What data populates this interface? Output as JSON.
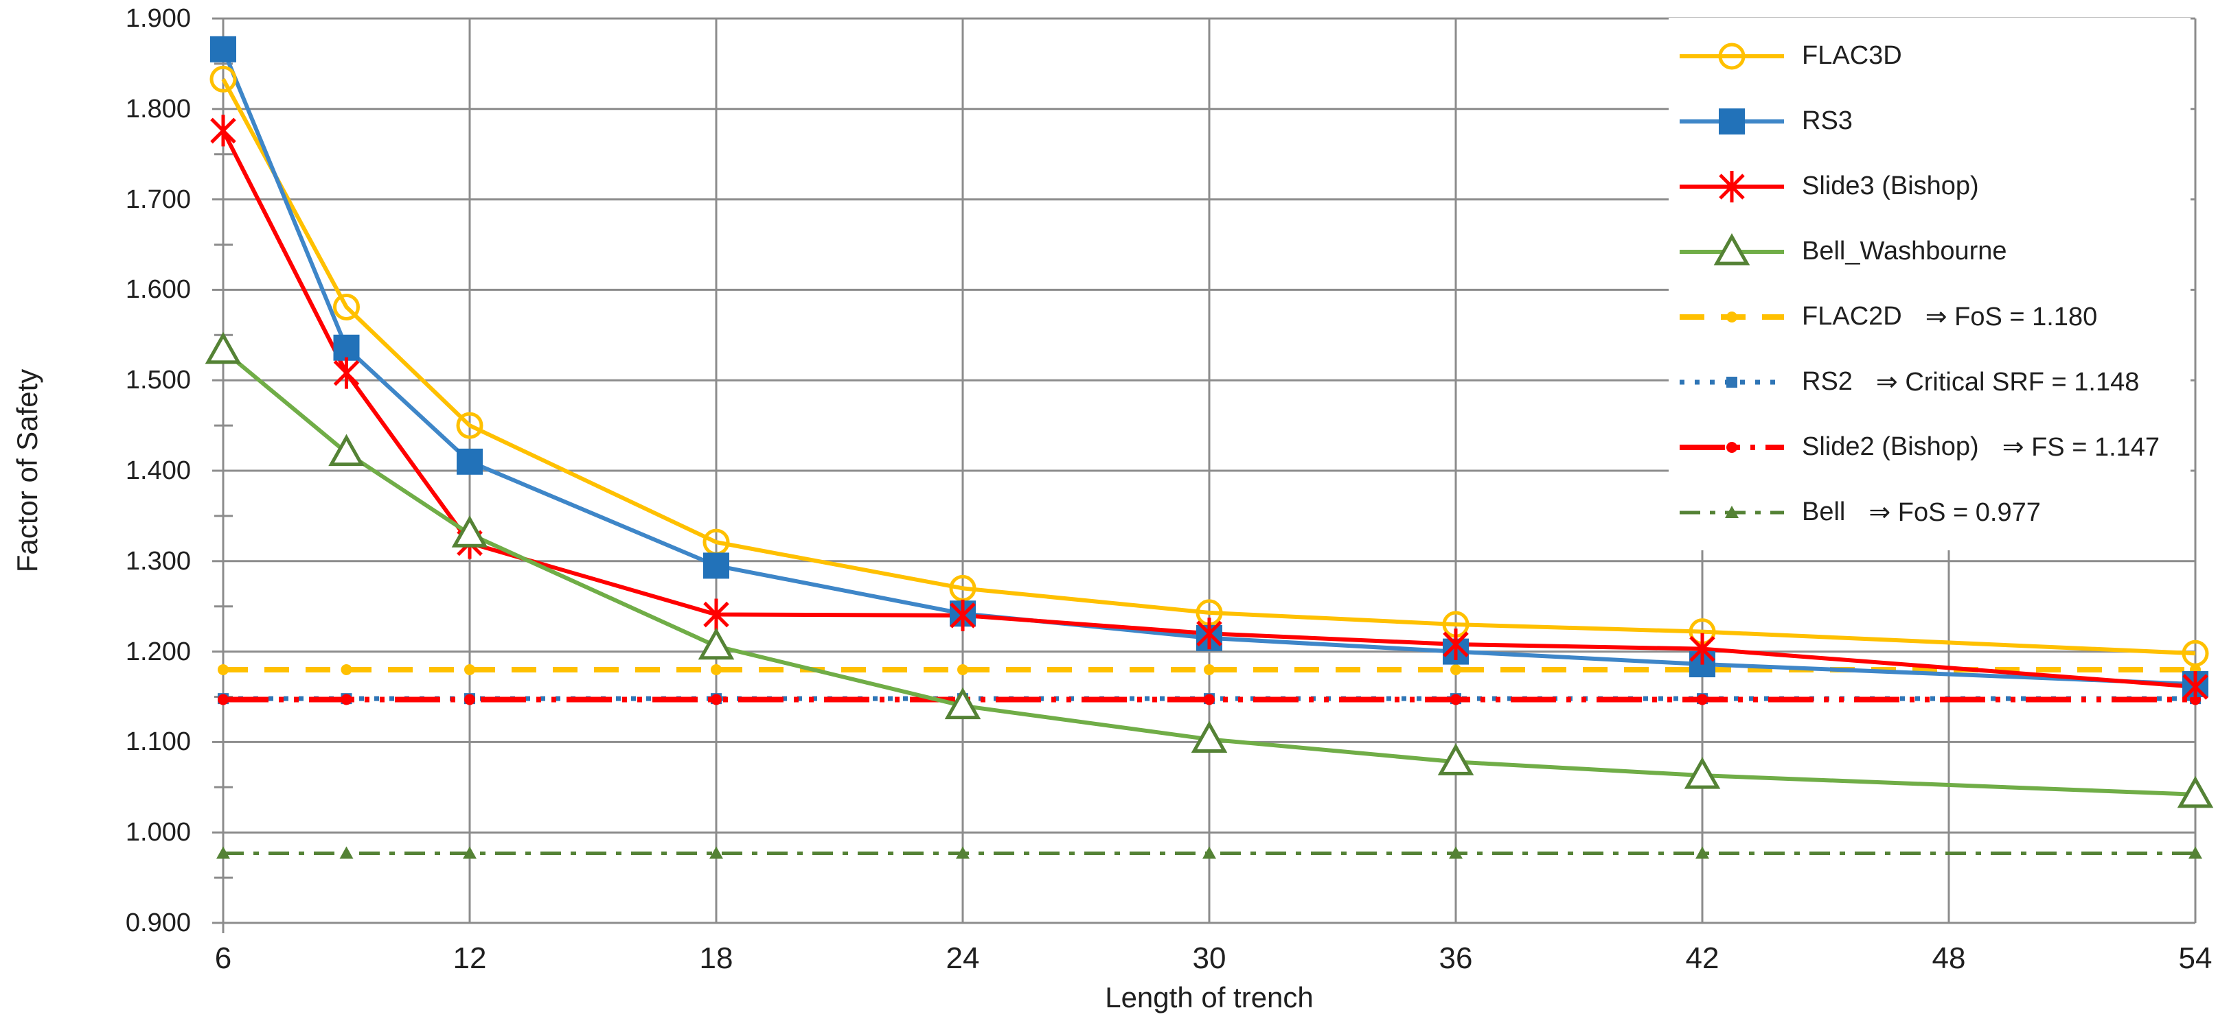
{
  "chart_data": {
    "type": "line",
    "title": "",
    "xlabel": "Length of trench",
    "ylabel": "Factor of Safety",
    "x": [
      6,
      9,
      12,
      18,
      24,
      30,
      36,
      42,
      54
    ],
    "series": [
      {
        "name": "FLAC3D",
        "color": "#FFC000",
        "marker": "circle-open",
        "marker_color": "#FFC000",
        "values": [
          1.833,
          1.581,
          1.45,
          1.321,
          1.27,
          1.243,
          1.23,
          1.222,
          1.198
        ]
      },
      {
        "name": "RS3",
        "color": "#3E86C8",
        "marker": "square",
        "marker_color": "#2272B9",
        "values": [
          1.866,
          1.536,
          1.41,
          1.295,
          1.242,
          1.215,
          1.2,
          1.186,
          1.164
        ]
      },
      {
        "name": "Slide3 (Bishop)",
        "color": "#FF0000",
        "marker": "asterisk",
        "marker_color": "#FF0000",
        "values": [
          1.776,
          1.508,
          1.32,
          1.241,
          1.24,
          1.22,
          1.208,
          1.203,
          1.161
        ]
      },
      {
        "name": "Bell_Washbourne",
        "color": "#70AD47",
        "marker": "triangle-open",
        "marker_color": "#548235",
        "values": [
          1.533,
          1.42,
          1.33,
          1.206,
          1.14,
          1.103,
          1.078,
          1.063,
          1.042
        ]
      }
    ],
    "reference_lines": [
      {
        "name": "FLAC2D",
        "annotation": "⇒ FoS = 1.180",
        "value": 1.18,
        "color": "#FFC000",
        "style": "dash",
        "width": 8,
        "marker": "dot"
      },
      {
        "name": "RS2",
        "annotation": "⇒ Critical SRF = 1.148",
        "value": 1.148,
        "color": "#2E75B6",
        "style": "dot",
        "width": 7,
        "marker": "square-small"
      },
      {
        "name": "Slide2 (Bishop)",
        "annotation": "⇒ FS = 1.147",
        "value": 1.147,
        "color": "#FF0000",
        "style": "dash-dot-dot",
        "width": 8,
        "marker": "dot"
      },
      {
        "name": "Bell",
        "annotation": "⇒ FoS = 0.977",
        "value": 0.977,
        "color": "#548235",
        "style": "dash-dot",
        "width": 5,
        "marker": "triangle-small"
      }
    ],
    "x_ticks": [
      6,
      12,
      18,
      24,
      30,
      36,
      42,
      48,
      54
    ],
    "xlim": [
      6,
      54
    ],
    "ylim": [
      0.9,
      1.9
    ],
    "y_step": 0.1,
    "y_minor_step": 0.05,
    "y_decimals": 3,
    "grid": true,
    "gridline_color": "#8C8C8C",
    "legend_position": "top-right"
  }
}
